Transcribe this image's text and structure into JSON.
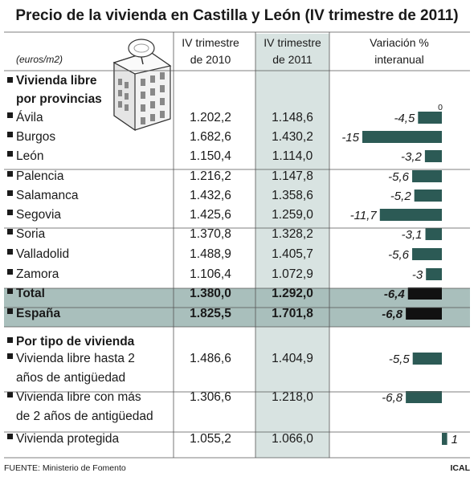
{
  "title": "Precio de la vivienda en Castilla y León (IV trimestre de 2011)",
  "unit_label": "(euros/m2)",
  "columns": {
    "col1": [
      "IV trimestre",
      "de 2010"
    ],
    "col2": [
      "IV trimestre",
      "de 2011"
    ],
    "col3": [
      "Variación %",
      "interanual"
    ]
  },
  "section1": [
    "Vivienda libre",
    "por provincias"
  ],
  "section2": "Por tipo de vivienda",
  "zero_label": "0",
  "source": "FUENTE: Ministerio de Fomento",
  "brand": "ICAL",
  "colors": {
    "bar": "#2c5a55",
    "bar_total": "#111111",
    "highlight_col": "#d8e3e1",
    "total_band": "#a9bfbc"
  },
  "chart_data": {
    "type": "table",
    "title": "Precio de la vivienda en Castilla y León (IV trimestre de 2011)",
    "unit": "euros/m2",
    "bar_axis": {
      "zero": 0,
      "min": -15,
      "max": 1
    },
    "rows": [
      {
        "label": [
          "Ávila"
        ],
        "v2010": "1.202,2",
        "v2011": "1.148,6",
        "var": -4.5,
        "var_label": "-4,5"
      },
      {
        "label": [
          "Burgos"
        ],
        "v2010": "1.682,6",
        "v2011": "1.430,2",
        "var": -15,
        "var_label": "-15"
      },
      {
        "label": [
          "León"
        ],
        "v2010": "1.150,4",
        "v2011": "1.114,0",
        "var": -3.2,
        "var_label": "-3,2"
      },
      {
        "label": [
          "Palencia"
        ],
        "v2010": "1.216,2",
        "v2011": "1.147,8",
        "var": -5.6,
        "var_label": "-5,6"
      },
      {
        "label": [
          "Salamanca"
        ],
        "v2010": "1.432,6",
        "v2011": "1.358,6",
        "var": -5.2,
        "var_label": "-5,2"
      },
      {
        "label": [
          "Segovia"
        ],
        "v2010": "1.425,6",
        "v2011": "1.259,0",
        "var": -11.7,
        "var_label": "-11,7"
      },
      {
        "label": [
          "Soria"
        ],
        "v2010": "1.370,8",
        "v2011": "1.328,2",
        "var": -3.1,
        "var_label": "-3,1"
      },
      {
        "label": [
          "Valladolid"
        ],
        "v2010": "1.488,9",
        "v2011": "1.405,7",
        "var": -5.6,
        "var_label": "-5,6"
      },
      {
        "label": [
          "Zamora"
        ],
        "v2010": "1.106,4",
        "v2011": "1.072,9",
        "var": -3,
        "var_label": "-3"
      },
      {
        "label": [
          "Total"
        ],
        "v2010": "1.380,0",
        "v2011": "1.292,0",
        "var": -6.4,
        "var_label": "-6,4",
        "bold": true
      },
      {
        "label": [
          "España"
        ],
        "v2010": "1.825,5",
        "v2011": "1.701,8",
        "var": -6.8,
        "var_label": "-6,8",
        "bold": true
      },
      {
        "label": [
          "Vivienda libre hasta 2",
          "años de antigüedad"
        ],
        "v2010": "1.486,6",
        "v2011": "1.404,9",
        "var": -5.5,
        "var_label": "-5,5"
      },
      {
        "label": [
          "Vivienda libre con más",
          "de 2 años de antigüedad"
        ],
        "v2010": "1.306,6",
        "v2011": "1.218,0",
        "var": -6.8,
        "var_label": "-6,8"
      },
      {
        "label": [
          "Vivienda protegida"
        ],
        "v2010": "1.055,2",
        "v2011": "1.066,0",
        "var": 1,
        "var_label": "1"
      }
    ]
  }
}
